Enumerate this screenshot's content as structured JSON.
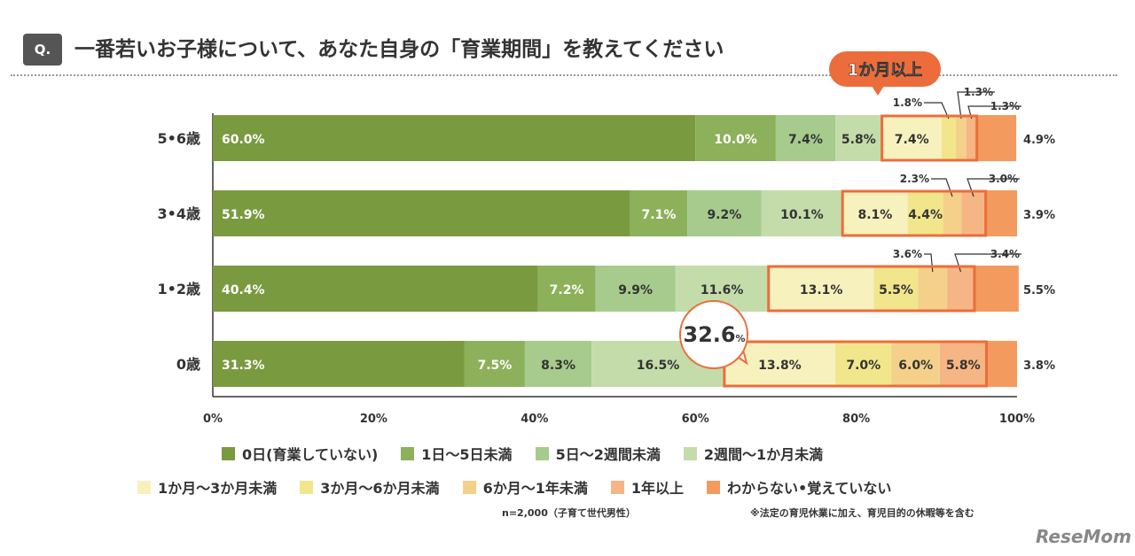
{
  "header": {
    "q_label": "Q.",
    "title": "一番若いお子様について、あなた自身の「育業期間」を教えてください"
  },
  "callouts": {
    "top_bubble": "1か月以上",
    "zero_total": "32.6",
    "zero_total_unit": "%"
  },
  "chart_data": {
    "type": "bar",
    "orientation": "horizontal",
    "stacked": true,
    "categories": [
      "5•6歳",
      "3•4歳",
      "1•2歳",
      "0歳"
    ],
    "xlim": [
      0,
      100
    ],
    "xticks": [
      "0%",
      "20%",
      "40%",
      "60%",
      "80%",
      "100%"
    ],
    "series": [
      {
        "name": "0日(育業していない)",
        "color": "#7a9a40",
        "values": [
          60.0,
          51.9,
          40.4,
          31.3
        ]
      },
      {
        "name": "1日～5日未満",
        "color": "#8db05a",
        "values": [
          10.0,
          7.1,
          7.2,
          7.5
        ]
      },
      {
        "name": "5日～2週間未満",
        "color": "#a6cb8c",
        "values": [
          7.4,
          9.2,
          9.9,
          8.3
        ]
      },
      {
        "name": "2週間～1か月未満",
        "color": "#c3dcaa",
        "values": [
          5.8,
          10.1,
          11.6,
          16.5
        ]
      },
      {
        "name": "1か月～3か月未満",
        "color": "#f7f1bd",
        "values": [
          7.4,
          8.1,
          13.1,
          13.8
        ]
      },
      {
        "name": "3か月～6か月未満",
        "color": "#f1e68c",
        "values": [
          1.8,
          4.4,
          5.5,
          7.0
        ]
      },
      {
        "name": "6か月～1年未満",
        "color": "#f4d08a",
        "values": [
          1.3,
          2.3,
          3.6,
          6.0
        ]
      },
      {
        "name": "1年以上",
        "color": "#f6b584",
        "values": [
          1.3,
          3.0,
          3.4,
          5.8
        ]
      },
      {
        "name": "わからない•覚えていない",
        "color": "#f39a5f",
        "values": [
          4.9,
          3.9,
          5.5,
          3.8
        ]
      }
    ],
    "highlight_color": "#ec6d3b"
  },
  "notes": {
    "n": "n=2,000（子育て世代男性）",
    "footnote": "※法定の育児休業に加え、育児目的の休暇等を含む"
  },
  "logo": "ReseMom"
}
